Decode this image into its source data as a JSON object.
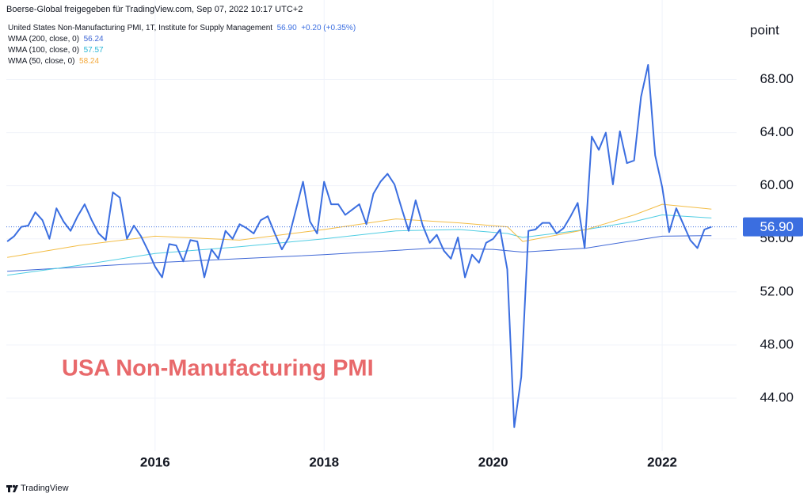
{
  "header": {
    "attribution": "Boerse-Global freigegeben für TradingView.com, Sep 07, 2022 10:17 UTC+2",
    "footer_brand": "TradingView"
  },
  "chart_data": {
    "type": "line",
    "annotation": "USA Non-Manufacturing PMI",
    "y_unit": "point",
    "x": [
      2014.25,
      2014.333,
      2014.417,
      2014.5,
      2014.583,
      2014.667,
      2014.75,
      2014.833,
      2014.917,
      2015,
      2015.083,
      2015.167,
      2015.25,
      2015.333,
      2015.417,
      2015.5,
      2015.583,
      2015.667,
      2015.75,
      2015.833,
      2015.917,
      2016,
      2016.083,
      2016.167,
      2016.25,
      2016.333,
      2016.417,
      2016.5,
      2016.583,
      2016.667,
      2016.75,
      2016.833,
      2016.917,
      2017,
      2017.083,
      2017.167,
      2017.25,
      2017.333,
      2017.417,
      2017.5,
      2017.583,
      2017.667,
      2017.75,
      2017.833,
      2017.917,
      2018,
      2018.083,
      2018.167,
      2018.25,
      2018.333,
      2018.417,
      2018.5,
      2018.583,
      2018.667,
      2018.75,
      2018.833,
      2018.917,
      2019,
      2019.083,
      2019.167,
      2019.25,
      2019.333,
      2019.417,
      2019.5,
      2019.583,
      2019.667,
      2019.75,
      2019.833,
      2019.917,
      2020,
      2020.083,
      2020.167,
      2020.25,
      2020.333,
      2020.417,
      2020.5,
      2020.583,
      2020.667,
      2020.75,
      2020.833,
      2020.917,
      2021,
      2021.083,
      2021.167,
      2021.25,
      2021.333,
      2021.417,
      2021.5,
      2021.583,
      2021.667,
      2021.75,
      2021.833,
      2021.917,
      2022,
      2022.083,
      2022.167,
      2022.25,
      2022.333,
      2022.417,
      2022.5,
      2022.583
    ],
    "series": [
      {
        "name": "United States Non-Manufacturing PMI, 1T, Institute for Supply Management",
        "color": "#3b6ee0",
        "width": 2,
        "last_label": "56.90",
        "change_label": "+0.20 (+0.35%)",
        "values": [
          55.8,
          56.2,
          56.9,
          57.0,
          58.0,
          57.4,
          56.0,
          58.3,
          57.3,
          56.6,
          57.7,
          58.6,
          57.4,
          56.4,
          55.9,
          59.5,
          59.1,
          56.0,
          57.0,
          56.2,
          55.1,
          53.9,
          53.1,
          55.6,
          55.5,
          54.3,
          55.9,
          55.8,
          53.1,
          55.2,
          54.5,
          56.6,
          56.0,
          57.1,
          56.8,
          56.4,
          57.4,
          57.7,
          56.4,
          55.2,
          56.1,
          58.2,
          60.3,
          57.3,
          56.4,
          60.3,
          58.6,
          58.6,
          57.8,
          58.2,
          58.6,
          57.1,
          59.4,
          60.3,
          60.9,
          60.1,
          58.3,
          56.6,
          58.9,
          57.0,
          55.7,
          56.3,
          55.1,
          54.5,
          56.1,
          53.1,
          54.8,
          54.2,
          55.7,
          56.0,
          56.7,
          53.7,
          41.8,
          45.6,
          56.6,
          56.7,
          57.2,
          57.2,
          56.4,
          56.8,
          57.7,
          58.7,
          55.3,
          63.7,
          62.7,
          64.0,
          60.1,
          64.1,
          61.7,
          61.9,
          66.7,
          69.1,
          62.3,
          59.9,
          56.5,
          58.3,
          57.1,
          55.9,
          55.3,
          56.7,
          56.9
        ]
      },
      {
        "name": "WMA (200, close, 0)",
        "color": "#3f67d6",
        "width": 1,
        "last_label": "56.24",
        "x": [
          2014.25,
          2016,
          2018,
          2019.3,
          2020,
          2020.35,
          2021.1,
          2022,
          2022.583
        ],
        "values": [
          53.55,
          54.2,
          54.8,
          55.3,
          55.2,
          55.0,
          55.3,
          56.2,
          56.24
        ]
      },
      {
        "name": "WMA (100, close, 0)",
        "color": "#4fcde3",
        "width": 1,
        "last_label": "57.57",
        "x": [
          2014.25,
          2015.1,
          2016,
          2017,
          2018,
          2018.85,
          2019.6,
          2020.17,
          2020.35,
          2021.1,
          2021.67,
          2022,
          2022.583
        ],
        "values": [
          53.25,
          54.0,
          54.9,
          55.4,
          56.0,
          56.6,
          56.7,
          56.4,
          56.1,
          56.7,
          57.3,
          57.8,
          57.57
        ]
      },
      {
        "name": "WMA (50, close, 0)",
        "color": "#f3bd45",
        "width": 1,
        "last_label": "58.24",
        "x": [
          2014.25,
          2015.1,
          2016,
          2017,
          2018,
          2018.85,
          2019.6,
          2020.17,
          2020.35,
          2021.1,
          2021.67,
          2022,
          2022.583
        ],
        "values": [
          54.6,
          55.5,
          56.2,
          55.9,
          56.7,
          57.5,
          57.2,
          56.9,
          55.8,
          56.7,
          57.8,
          58.6,
          58.24
        ]
      }
    ],
    "xlim": [
      2014.24,
      2022.88
    ],
    "xticks": [
      2016,
      2018,
      2020,
      2022
    ],
    "ylim": [
      40.3,
      72.8
    ],
    "yticks": [
      {
        "value": 44,
        "label": "44.00"
      },
      {
        "value": 48,
        "label": "48.00"
      },
      {
        "value": 52,
        "label": "52.00"
      },
      {
        "value": 56,
        "label": "56.00"
      },
      {
        "value": 60,
        "label": "60.00"
      },
      {
        "value": 64,
        "label": "64.00"
      },
      {
        "value": 68,
        "label": "68.00"
      }
    ],
    "grid": true
  }
}
